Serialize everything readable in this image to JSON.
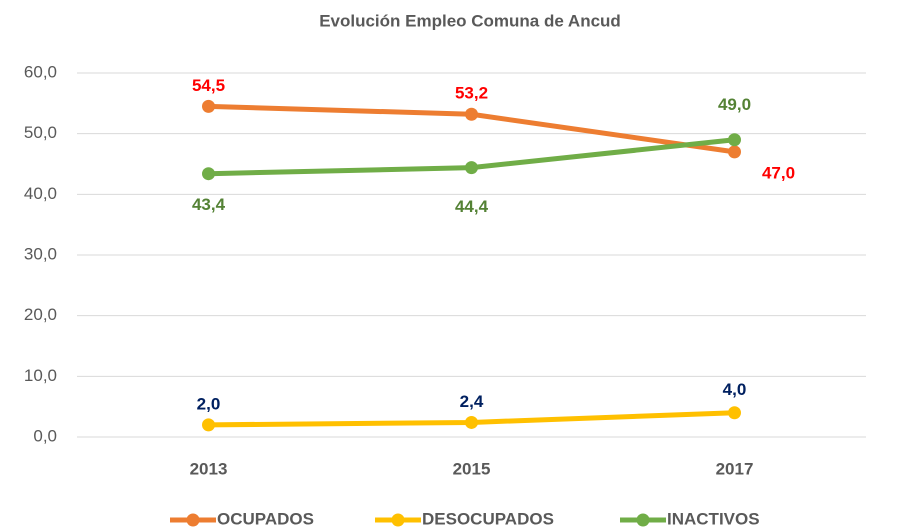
{
  "chart_data": {
    "type": "line",
    "title": "Evolución Empleo Comuna de Ancud",
    "categories": [
      "2013",
      "2015",
      "2017"
    ],
    "series": [
      {
        "name": "OCUPADOS",
        "color": "#ED7D31",
        "label_color": "#FF0000",
        "values": [
          54.5,
          53.2,
          47.0
        ],
        "value_labels": [
          "54,5",
          "53,2",
          "47,0"
        ]
      },
      {
        "name": "DESOCUPADOS",
        "color": "#FFC000",
        "label_color": "#002060",
        "values": [
          2.0,
          2.4,
          4.0
        ],
        "value_labels": [
          "2,0",
          "2,4",
          "4,0"
        ]
      },
      {
        "name": "INACTIVOS",
        "color": "#70AD47",
        "label_color": "#548235",
        "values": [
          43.4,
          44.4,
          49.0
        ],
        "value_labels": [
          "43,4",
          "44,4",
          "49,0"
        ]
      }
    ],
    "ylim": [
      0,
      60
    ],
    "yticks": [
      {
        "value": 0,
        "label": "0,0"
      },
      {
        "value": 10,
        "label": "10,0"
      },
      {
        "value": 20,
        "label": "20,0"
      },
      {
        "value": 30,
        "label": "30,0"
      },
      {
        "value": 40,
        "label": "40,0"
      },
      {
        "value": 50,
        "label": "50,0"
      },
      {
        "value": 60,
        "label": "60,0"
      }
    ],
    "grid": true,
    "legend": "bottom"
  }
}
